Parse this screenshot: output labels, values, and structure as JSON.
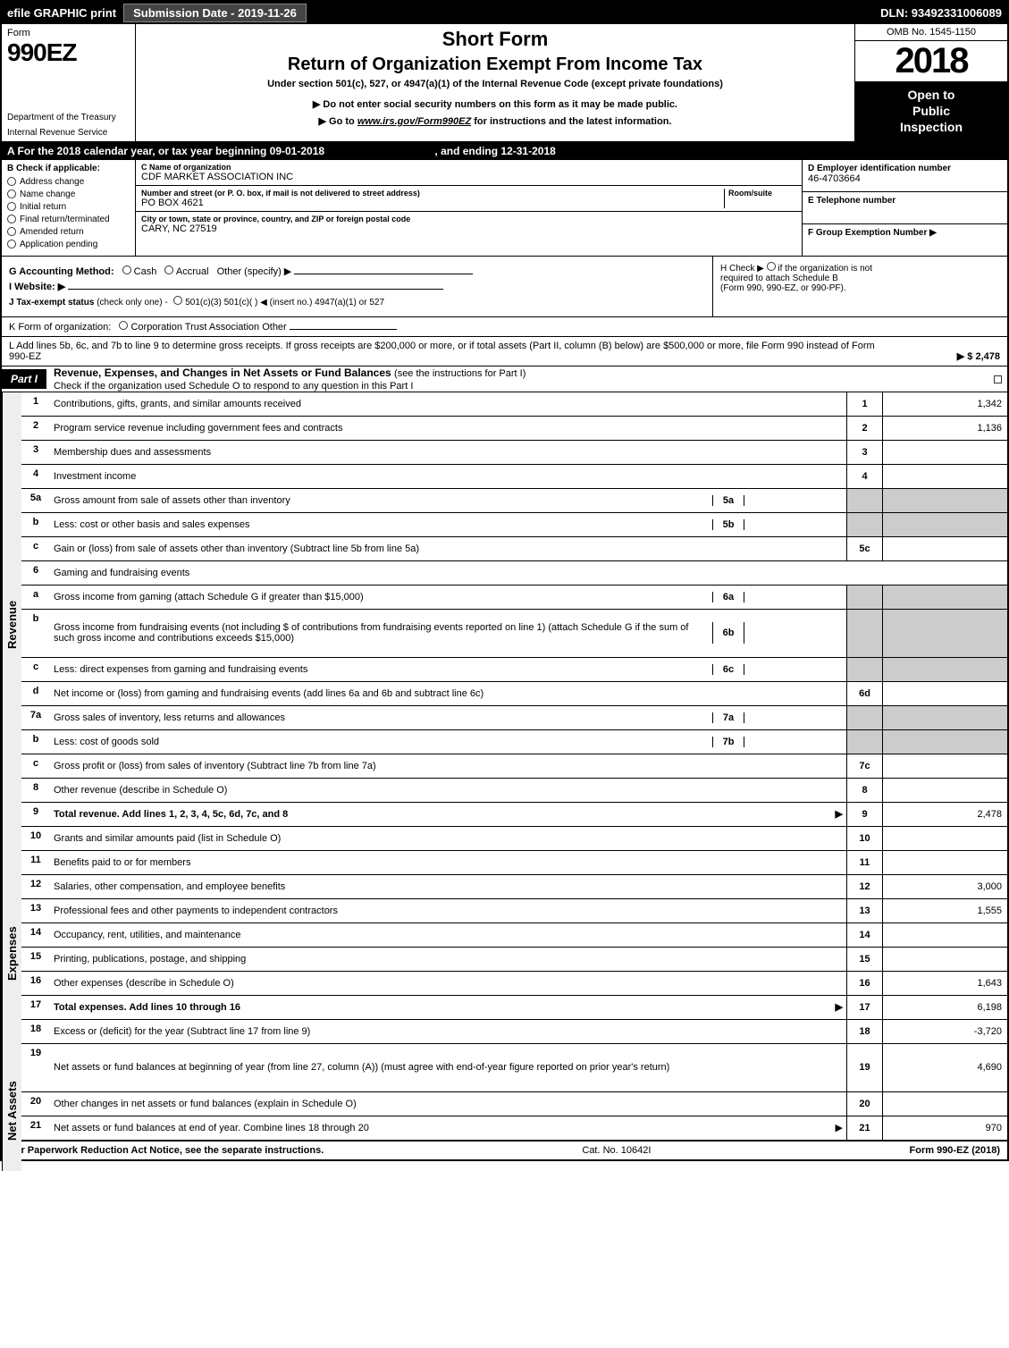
{
  "topbar": {
    "efile": "efile GRAPHIC print",
    "submission": "Submission Date - 2019-11-26",
    "dln": "DLN: 93492331006089"
  },
  "header": {
    "form_word": "Form",
    "form_number": "990EZ",
    "dept": "Department of the Treasury",
    "irs": "Internal Revenue Service",
    "short_form": "Short Form",
    "main_title": "Return of Organization Exempt From Income Tax",
    "subtitle": "Under section 501(c), 527, or 4947(a)(1) of the Internal Revenue Code (except private foundations)",
    "note1": "▶ Do not enter social security numbers on this form as it may be made public.",
    "note2_prefix": "▶ Go to ",
    "note2_link": "www.irs.gov/Form990EZ",
    "note2_suffix": " for instructions and the latest information.",
    "omb": "OMB No. 1545-1150",
    "year": "2018",
    "inspection_l1": "Open to",
    "inspection_l2": "Public",
    "inspection_l3": "Inspection"
  },
  "period": {
    "text_a": "A  For the 2018 calendar year, or tax year beginning 09-01-2018",
    "text_b": ", and ending 12-31-2018"
  },
  "sectionB": {
    "title": "B  Check if applicable:",
    "items": [
      "Address change",
      "Name change",
      "Initial return",
      "Final return/terminated",
      "Amended return",
      "Application pending"
    ]
  },
  "sectionC": {
    "name_label": "C Name of organization",
    "name": "CDF MARKET ASSOCIATION INC",
    "addr_label": "Number and street (or P. O. box, if mail is not delivered to street address)",
    "addr": "PO BOX 4621",
    "room_label": "Room/suite",
    "room": "",
    "city_label": "City or town, state or province, country, and ZIP or foreign postal code",
    "city": "CARY, NC  27519"
  },
  "sectionD": {
    "label": "D Employer identification number",
    "value": "46-4703664"
  },
  "sectionE": {
    "label": "E Telephone number",
    "value": ""
  },
  "sectionF": {
    "label": "F Group Exemption Number  ▶",
    "value": ""
  },
  "sectionG": {
    "label": "G Accounting Method:",
    "cash": "Cash",
    "accrual": "Accrual",
    "other": "Other (specify) ▶"
  },
  "sectionH": {
    "line1": "H  Check ▶",
    "line1b": "if the organization is not",
    "line2": "required to attach Schedule B",
    "line3": "(Form 990, 990-EZ, or 990-PF)."
  },
  "sectionI": {
    "label": "I Website: ▶"
  },
  "sectionJ": {
    "label": "J Tax-exempt status",
    "sub": "(check only one) -",
    "opts": "501(c)(3)    501(c)(  ) ◀ (insert no.)    4947(a)(1) or    527"
  },
  "sectionK": {
    "label": "K Form of organization:",
    "opts": "Corporation    Trust    Association    Other"
  },
  "sectionL": {
    "text": "L Add lines 5b, 6c, and 7b to line 9 to determine gross receipts. If gross receipts are $200,000 or more, or if total assets (Part II, column (B) below) are $500,000 or more, file Form 990 instead of Form 990-EZ",
    "amount": "▶ $ 2,478"
  },
  "partI": {
    "label": "Part I",
    "title": "Revenue, Expenses, and Changes in Net Assets or Fund Balances",
    "sub": "(see the instructions for Part I)",
    "check_text": "Check if the organization used Schedule O to respond to any question in this Part I"
  },
  "vtabs": {
    "revenue": "Revenue",
    "expenses": "Expenses",
    "netassets": "Net Assets"
  },
  "lines": [
    {
      "num": "1",
      "desc": "Contributions, gifts, grants, and similar amounts received",
      "ref": "1",
      "amt": "1,342"
    },
    {
      "num": "2",
      "desc": "Program service revenue including government fees and contracts",
      "ref": "2",
      "amt": "1,136"
    },
    {
      "num": "3",
      "desc": "Membership dues and assessments",
      "ref": "3",
      "amt": ""
    },
    {
      "num": "4",
      "desc": "Investment income",
      "ref": "4",
      "amt": ""
    },
    {
      "num": "5a",
      "desc": "Gross amount from sale of assets other than inventory",
      "inner_ref": "5a",
      "inner_amt": "",
      "shaded": true
    },
    {
      "num": "b",
      "desc": "Less: cost or other basis and sales expenses",
      "inner_ref": "5b",
      "inner_amt": "",
      "shaded": true
    },
    {
      "num": "c",
      "desc": "Gain or (loss) from sale of assets other than inventory (Subtract line 5b from line 5a)",
      "ref": "5c",
      "amt": ""
    },
    {
      "num": "6",
      "desc": "Gaming and fundraising events",
      "noamt": true,
      "shaded": true
    },
    {
      "num": "a",
      "desc": "Gross income from gaming (attach Schedule G if greater than $15,000)",
      "inner_ref": "6a",
      "inner_amt": "",
      "shaded": true
    },
    {
      "num": "b",
      "desc": "Gross income from fundraising events (not including $                      of contributions from fundraising events reported on line 1) (attach Schedule G if the sum of such gross income and contributions exceeds $15,000)",
      "inner_ref": "6b",
      "inner_amt": "",
      "shaded": true,
      "tall": true
    },
    {
      "num": "c",
      "desc": "Less: direct expenses from gaming and fundraising events",
      "inner_ref": "6c",
      "inner_amt": "",
      "shaded": true
    },
    {
      "num": "d",
      "desc": "Net income or (loss) from gaming and fundraising events (add lines 6a and 6b and subtract line 6c)",
      "ref": "6d",
      "amt": ""
    },
    {
      "num": "7a",
      "desc": "Gross sales of inventory, less returns and allowances",
      "inner_ref": "7a",
      "inner_amt": "",
      "shaded": true
    },
    {
      "num": "b",
      "desc": "Less: cost of goods sold",
      "inner_ref": "7b",
      "inner_amt": "",
      "shaded": true
    },
    {
      "num": "c",
      "desc": "Gross profit or (loss) from sales of inventory (Subtract line 7b from line 7a)",
      "ref": "7c",
      "amt": ""
    },
    {
      "num": "8",
      "desc": "Other revenue (describe in Schedule O)",
      "ref": "8",
      "amt": ""
    },
    {
      "num": "9",
      "desc": "Total revenue. Add lines 1, 2, 3, 4, 5c, 6d, 7c, and 8",
      "ref": "9",
      "amt": "2,478",
      "bold": true,
      "arrow": true
    },
    {
      "num": "10",
      "desc": "Grants and similar amounts paid (list in Schedule O)",
      "ref": "10",
      "amt": ""
    },
    {
      "num": "11",
      "desc": "Benefits paid to or for members",
      "ref": "11",
      "amt": ""
    },
    {
      "num": "12",
      "desc": "Salaries, other compensation, and employee benefits",
      "ref": "12",
      "amt": "3,000"
    },
    {
      "num": "13",
      "desc": "Professional fees and other payments to independent contractors",
      "ref": "13",
      "amt": "1,555"
    },
    {
      "num": "14",
      "desc": "Occupancy, rent, utilities, and maintenance",
      "ref": "14",
      "amt": ""
    },
    {
      "num": "15",
      "desc": "Printing, publications, postage, and shipping",
      "ref": "15",
      "amt": ""
    },
    {
      "num": "16",
      "desc": "Other expenses (describe in Schedule O)",
      "ref": "16",
      "amt": "1,643"
    },
    {
      "num": "17",
      "desc": "Total expenses. Add lines 10 through 16",
      "ref": "17",
      "amt": "6,198",
      "bold": true,
      "arrow": true
    },
    {
      "num": "18",
      "desc": "Excess or (deficit) for the year (Subtract line 17 from line 9)",
      "ref": "18",
      "amt": "-3,720"
    },
    {
      "num": "19",
      "desc": "Net assets or fund balances at beginning of year (from line 27, column (A)) (must agree with end-of-year figure reported on prior year's return)",
      "ref": "19",
      "amt": "4,690",
      "tall": true
    },
    {
      "num": "20",
      "desc": "Other changes in net assets or fund balances (explain in Schedule O)",
      "ref": "20",
      "amt": ""
    },
    {
      "num": "21",
      "desc": "Net assets or fund balances at end of year. Combine lines 18 through 20",
      "ref": "21",
      "amt": "970",
      "arrow": true
    }
  ],
  "footer": {
    "left": "For Paperwork Reduction Act Notice, see the separate instructions.",
    "mid": "Cat. No. 10642I",
    "right": "Form 990-EZ (2018)"
  }
}
